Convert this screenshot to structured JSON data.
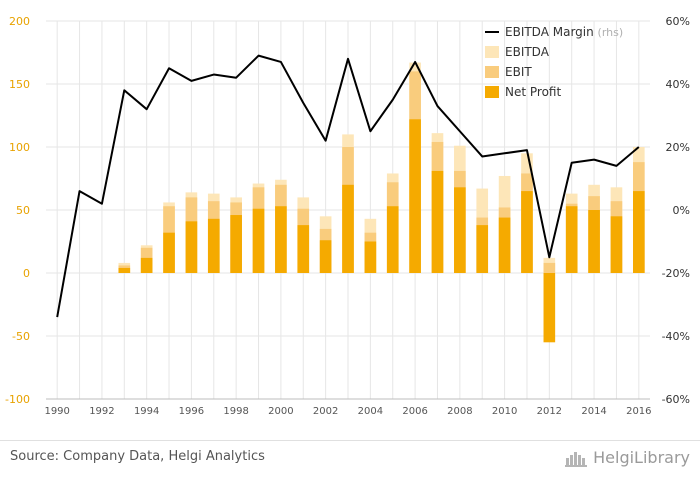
{
  "chart_data": {
    "type": "bar",
    "title": "",
    "xlabel": "",
    "ylabel": "",
    "x": [
      1990,
      1991,
      1992,
      1993,
      1994,
      1995,
      1996,
      1997,
      1998,
      1999,
      2000,
      2001,
      2002,
      2003,
      2004,
      2005,
      2006,
      2007,
      2008,
      2009,
      2010,
      2011,
      2012,
      2013,
      2014,
      2015,
      2016
    ],
    "x_tick_labels": [
      "1990",
      "1992",
      "1994",
      "1996",
      "1998",
      "2000",
      "2002",
      "2004",
      "2006",
      "2008",
      "2010",
      "2012",
      "2014",
      "2016"
    ],
    "ylim": [
      -100,
      200
    ],
    "y_ticks": [
      "200",
      "150",
      "100",
      "50",
      "0",
      "-50",
      "-100"
    ],
    "y2lim": [
      -60,
      60
    ],
    "y2_ticks": [
      "60%",
      "40%",
      "20%",
      "0%",
      "-20%",
      "-40%",
      "-60%"
    ],
    "series": [
      {
        "name": "EBITDA",
        "kind": "bar",
        "color": "#fde6b8",
        "values": [
          null,
          null,
          null,
          8,
          22,
          56,
          64,
          63,
          60,
          71,
          74,
          60,
          45,
          110,
          43,
          79,
          167,
          111,
          101,
          67,
          77,
          95,
          12,
          63,
          70,
          68,
          100
        ]
      },
      {
        "name": "EBIT",
        "kind": "bar",
        "color": "#f9cc7d",
        "values": [
          null,
          null,
          null,
          6,
          20,
          53,
          60,
          57,
          56,
          68,
          70,
          51,
          35,
          100,
          32,
          72,
          160,
          104,
          81,
          44,
          52,
          79,
          8,
          55,
          61,
          57,
          88
        ]
      },
      {
        "name": "Net Profit",
        "kind": "bar",
        "color": "#f5aa00",
        "values": [
          null,
          null,
          null,
          4,
          12,
          32,
          41,
          43,
          46,
          51,
          53,
          38,
          26,
          70,
          25,
          53,
          122,
          81,
          68,
          38,
          44,
          65,
          -55,
          53,
          50,
          45,
          65
        ]
      },
      {
        "name": "EBITDA Margin",
        "name_suffix": "(rhs)",
        "kind": "line",
        "axis": "right",
        "color": "#000000",
        "values": [
          -34,
          6,
          2,
          38,
          32,
          45,
          41,
          43,
          42,
          49,
          47,
          34,
          22,
          48,
          25,
          35,
          47,
          33,
          25,
          17,
          18,
          19,
          -15,
          15,
          16,
          14,
          20
        ]
      }
    ],
    "legend_position": "top-right"
  },
  "footer": {
    "source": "Source: Company Data, Helgi Analytics",
    "brand": "HelgiLibrary"
  }
}
